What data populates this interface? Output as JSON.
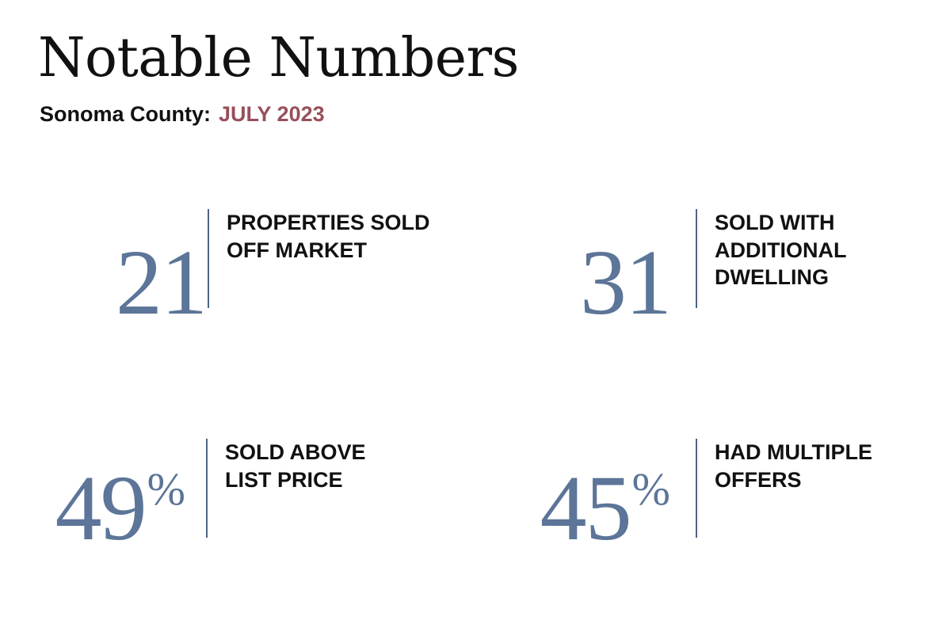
{
  "header": {
    "title": "Notable Numbers",
    "region": "Sonoma County:",
    "period": "JULY 2023"
  },
  "stats": [
    {
      "value": "21",
      "suffix": "",
      "label": "PROPERTIES SOLD\nOFF MARKET"
    },
    {
      "value": "31",
      "suffix": "",
      "label": "SOLD WITH\nADDITIONAL\nDWELLING"
    },
    {
      "value": "49",
      "suffix": "%",
      "label": "SOLD ABOVE\nLIST PRICE"
    },
    {
      "value": "45",
      "suffix": "%",
      "label": "HAD MULTIPLE\nOFFERS"
    }
  ],
  "colors": {
    "number": "#5c7598",
    "divider": "#4e6484",
    "period": "#97505a",
    "text": "#111111"
  }
}
